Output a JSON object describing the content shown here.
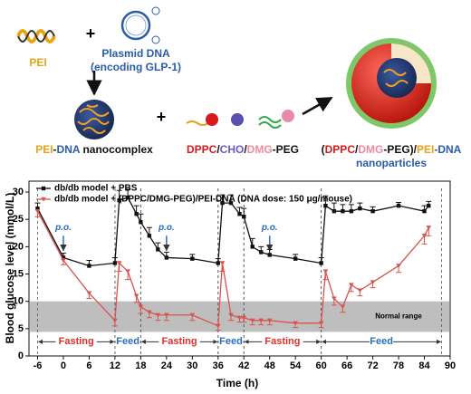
{
  "scheme": {
    "pei_label": "PEI",
    "plus": [
      "+",
      "+"
    ],
    "plasmid_label": [
      "Plasmid DNA",
      "(encoding GLP-1)"
    ],
    "nanocomplex_label": [
      {
        "text": "PEI",
        "color": "#e8a317"
      },
      {
        "text": "-",
        "color": "#111111"
      },
      {
        "text": "DNA",
        "color": "#2a5caa"
      },
      {
        "text": " nanocomplex",
        "color": "#111111"
      }
    ],
    "lipids_label": [
      {
        "text": "DPPC",
        "color": "#d7191c"
      },
      {
        "text": "/",
        "color": "#111111"
      },
      {
        "text": "CHO",
        "color": "#6a5acd"
      },
      {
        "text": "/",
        "color": "#111111"
      },
      {
        "text": "DMG",
        "color": "#f08aa0"
      },
      {
        "text": "-PEG",
        "color": "#111111"
      }
    ],
    "nanoparticle_label": [
      [
        {
          "text": "(",
          "color": "#111111"
        },
        {
          "text": "DPPC",
          "color": "#d7191c"
        },
        {
          "text": "/",
          "color": "#111111"
        },
        {
          "text": "DMG",
          "color": "#f08aa0"
        },
        {
          "text": "-PEG)/",
          "color": "#111111"
        },
        {
          "text": "PEI",
          "color": "#e8a317"
        },
        {
          "text": "-DNA",
          "color": "#2a5caa"
        }
      ],
      [
        {
          "text": "nanoparticles",
          "color": "#2a5caa"
        }
      ]
    ]
  },
  "chart_data": {
    "type": "line",
    "xlabel": "Time (h)",
    "ylabel": "Blood glucose level (mmol/L)",
    "xlim": [
      -8,
      90
    ],
    "ylim": [
      0,
      32
    ],
    "xticks": [
      -6,
      0,
      6,
      12,
      18,
      24,
      30,
      36,
      42,
      48,
      54,
      60,
      66,
      72,
      78,
      84,
      90
    ],
    "yticks": [
      0,
      5,
      10,
      15,
      20,
      25,
      30
    ],
    "x": [
      -6,
      0,
      6,
      12,
      13,
      15,
      17,
      18,
      20,
      22,
      24,
      30,
      36,
      37,
      39,
      41,
      42,
      44,
      46,
      48,
      54,
      60,
      61,
      63,
      65,
      67,
      69,
      72,
      78,
      84,
      85
    ],
    "series": [
      {
        "name": "db/db model + PBS",
        "color": "#111111",
        "marker": "square",
        "values": [
          27,
          18,
          16.5,
          17,
          28.5,
          29,
          26,
          24.5,
          22,
          19.5,
          18,
          17.8,
          17,
          28,
          28,
          26,
          25.5,
          20,
          19,
          18.5,
          17.8,
          17,
          27.5,
          26.5,
          26.5,
          26.5,
          27,
          26.5,
          27.5,
          26.5,
          27.5
        ],
        "errors": [
          1,
          0.8,
          1,
          1,
          1.8,
          1.5,
          1.5,
          1.5,
          1.5,
          1.2,
          1,
          0.8,
          0.8,
          1.5,
          1.5,
          1.2,
          1.5,
          1.5,
          1,
          1,
          0.8,
          1,
          1.8,
          1.5,
          1.2,
          1.2,
          1,
          0.8,
          0.6,
          1,
          0.8
        ]
      },
      {
        "name": "db/db model + (DPPC/DMG-PEG)/PEI-DNA (DNA dose: 150 μg/mouse)",
        "color": "#d9534f",
        "marker": "triangle",
        "values": [
          26.5,
          17.5,
          11.5,
          6.5,
          17,
          15.5,
          11,
          9,
          8,
          7.5,
          7.5,
          7.5,
          5.5,
          17,
          7.5,
          7,
          7,
          6.5,
          6.5,
          6.5,
          6,
          6,
          15.5,
          10.5,
          9,
          13,
          12,
          13.5,
          16.5,
          22,
          23.5
        ],
        "errors": [
          1,
          0.8,
          1,
          1,
          1.5,
          1.5,
          1.2,
          1.2,
          1,
          1,
          1,
          1,
          0.8,
          1.5,
          1,
          0.8,
          0.8,
          0.8,
          0.8,
          0.8,
          0.8,
          0.8,
          1.5,
          1.2,
          1,
          1.2,
          1,
          1,
          1.2,
          1.5,
          1.5
        ]
      }
    ],
    "band": {
      "label": "Normal range",
      "range": [
        4.4,
        10
      ],
      "color": "#b3b3b3"
    },
    "phases": [
      {
        "label": "Fasting",
        "start": -6,
        "end": 12,
        "color": "#e0302a"
      },
      {
        "label": "Feed",
        "start": 12,
        "end": 18,
        "color": "#2a6ebb"
      },
      {
        "label": "Fasting",
        "start": 18,
        "end": 36,
        "color": "#e0302a"
      },
      {
        "label": "Feed",
        "start": 36,
        "end": 42,
        "color": "#2a6ebb"
      },
      {
        "label": "Fasting",
        "start": 42,
        "end": 60,
        "color": "#e0302a"
      },
      {
        "label": "Feed",
        "start": 60,
        "end": 88,
        "color": "#2a6ebb"
      }
    ],
    "annotations": [
      {
        "text": "p.o.",
        "x": 0
      },
      {
        "text": "p.o.",
        "x": 24
      },
      {
        "text": "p.o.",
        "x": 48
      }
    ],
    "annotation_color": "#2a6ebb"
  }
}
